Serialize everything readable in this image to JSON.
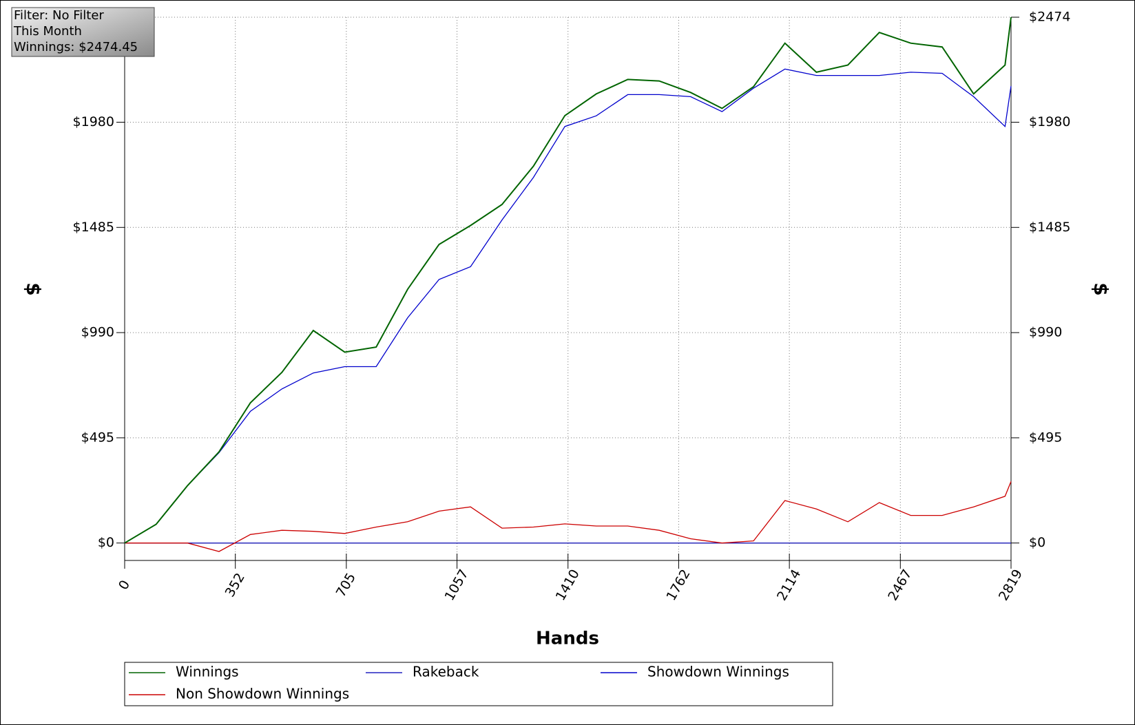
{
  "chart_data": {
    "type": "line",
    "filter_box": [
      "Filter: No Filter",
      "This Month",
      "Winnings: $2474.45"
    ],
    "xlabel": "Hands",
    "ylabel": "$",
    "x": [
      0,
      100,
      200,
      300,
      400,
      500,
      600,
      700,
      800,
      900,
      1000,
      1100,
      1200,
      1300,
      1400,
      1500,
      1600,
      1700,
      1800,
      1900,
      2000,
      2100,
      2200,
      2300,
      2400,
      2500,
      2600,
      2700,
      2800,
      2819
    ],
    "series": [
      {
        "name": "Rakeback",
        "color": "#2020c0",
        "values": [
          0,
          0,
          0,
          0,
          0,
          0,
          0,
          0,
          0,
          0,
          0,
          0,
          0,
          0,
          0,
          0,
          0,
          0,
          0,
          0,
          0,
          0,
          0,
          0,
          0,
          0,
          0,
          0,
          0,
          0
        ]
      },
      {
        "name": "Showdown Winnings",
        "color": "#0000cc",
        "values": [
          0,
          88,
          270,
          425,
          620,
          725,
          800,
          830,
          830,
          1060,
          1240,
          1300,
          1520,
          1720,
          1960,
          2010,
          2110,
          2110,
          2100,
          2030,
          2140,
          2230,
          2200,
          2200,
          2200,
          2215,
          2210,
          2100,
          1960,
          2150
        ]
      },
      {
        "name": "Non Showdown Winnings",
        "color": "#cc0000",
        "values": [
          0,
          0,
          0,
          -40,
          40,
          60,
          55,
          45,
          75,
          100,
          150,
          170,
          70,
          75,
          90,
          80,
          80,
          60,
          20,
          0,
          10,
          200,
          160,
          100,
          190,
          130,
          130,
          170,
          220,
          290
        ]
      },
      {
        "name": "Winnings",
        "color": "#006400",
        "values": [
          0,
          88,
          270,
          429,
          660,
          803,
          1000,
          898,
          922,
          1194,
          1405,
          1494,
          1593,
          1773,
          2011,
          2113,
          2181,
          2174,
          2120,
          2045,
          2147,
          2352,
          2215,
          2249,
          2402,
          2352,
          2334,
          2113,
          2249,
          2474
        ]
      }
    ],
    "legend_order": [
      "Winnings",
      "Rakeback",
      "Showdown Winnings",
      "Non Showdown Winnings"
    ],
    "xlim": [
      0,
      2819
    ],
    "xticks": [
      0,
      352,
      705,
      1057,
      1410,
      1762,
      2114,
      2467,
      2819
    ],
    "ylim": [
      -82,
      2474
    ],
    "yticks": [
      {
        "value": 0,
        "label": "$0"
      },
      {
        "value": 495,
        "label": "$495"
      },
      {
        "value": 990,
        "label": "$990"
      },
      {
        "value": 1485,
        "label": "$1485"
      },
      {
        "value": 1980,
        "label": "$1980"
      },
      {
        "value": 2474,
        "label": "$2474"
      }
    ],
    "grid": true
  }
}
